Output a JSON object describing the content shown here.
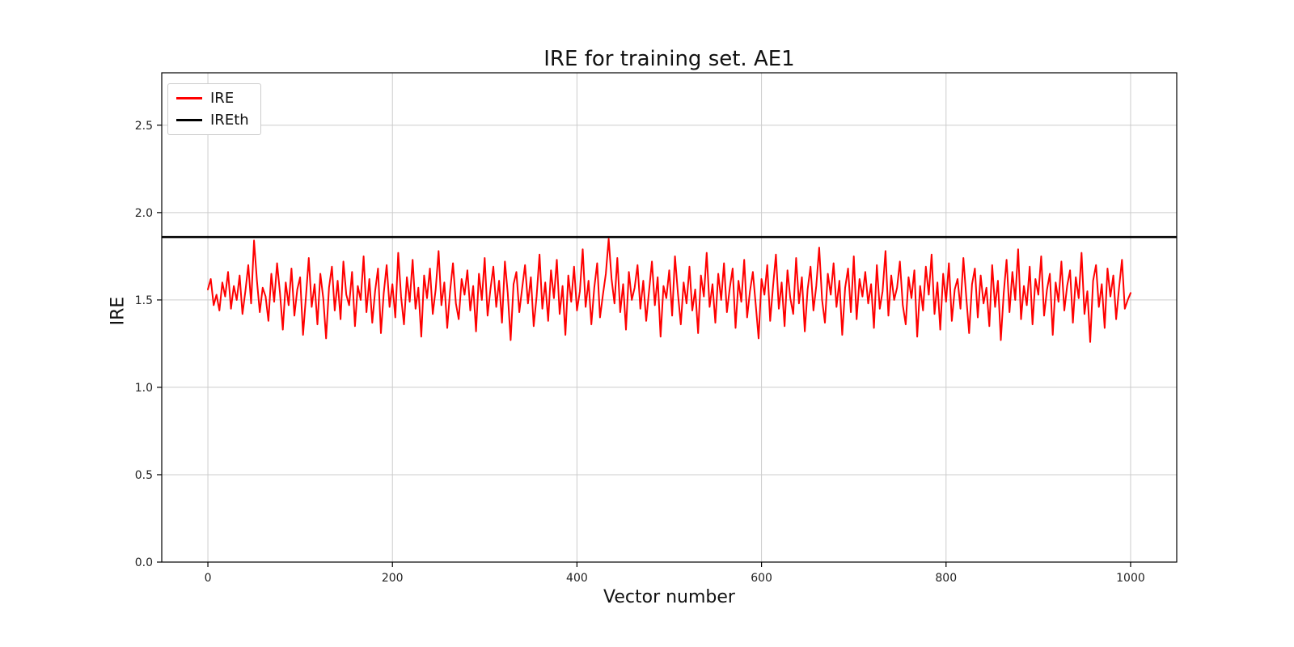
{
  "chart_data": {
    "type": "line",
    "title": "IRE for training set. AE1",
    "xlabel": "Vector number",
    "ylabel": "IRE",
    "xlim": [
      -50,
      1050
    ],
    "ylim": [
      0,
      2.8
    ],
    "xticks": [
      0,
      200,
      400,
      600,
      800,
      1000
    ],
    "yticks": [
      0.0,
      0.5,
      1.0,
      1.5,
      2.0,
      2.5
    ],
    "grid": true,
    "legend_position": "upper left",
    "legend": [
      {
        "label": "IRE",
        "color": "#ff0000"
      },
      {
        "label": "IREth",
        "color": "#000000"
      }
    ],
    "threshold": {
      "name": "IREth",
      "value": 1.86,
      "color": "#000000"
    },
    "series": [
      {
        "name": "IRE",
        "color": "#ff0000",
        "x_start": 0,
        "x_end": 1000,
        "values": [
          1.56,
          1.62,
          1.47,
          1.53,
          1.44,
          1.6,
          1.52,
          1.66,
          1.45,
          1.58,
          1.5,
          1.64,
          1.42,
          1.55,
          1.7,
          1.48,
          1.84,
          1.61,
          1.43,
          1.57,
          1.52,
          1.38,
          1.65,
          1.49,
          1.71,
          1.54,
          1.33,
          1.6,
          1.47,
          1.68,
          1.41,
          1.56,
          1.63,
          1.3,
          1.52,
          1.74,
          1.46,
          1.59,
          1.36,
          1.65,
          1.51,
          1.28,
          1.57,
          1.69,
          1.44,
          1.61,
          1.39,
          1.72,
          1.53,
          1.47,
          1.66,
          1.35,
          1.58,
          1.5,
          1.75,
          1.43,
          1.62,
          1.37,
          1.55,
          1.68,
          1.31,
          1.54,
          1.7,
          1.46,
          1.59,
          1.4,
          1.77,
          1.52,
          1.36,
          1.63,
          1.49,
          1.73,
          1.45,
          1.57,
          1.29,
          1.64,
          1.51,
          1.68,
          1.42,
          1.56,
          1.78,
          1.47,
          1.6,
          1.34,
          1.55,
          1.71,
          1.48,
          1.39,
          1.62,
          1.53,
          1.67,
          1.44,
          1.58,
          1.32,
          1.65,
          1.5,
          1.74,
          1.41,
          1.56,
          1.69,
          1.46,
          1.61,
          1.37,
          1.72,
          1.54,
          1.27,
          1.59,
          1.66,
          1.43,
          1.57,
          1.7,
          1.48,
          1.63,
          1.35,
          1.52,
          1.76,
          1.45,
          1.6,
          1.38,
          1.67,
          1.51,
          1.73,
          1.42,
          1.58,
          1.3,
          1.64,
          1.49,
          1.69,
          1.44,
          1.55,
          1.79,
          1.46,
          1.61,
          1.36,
          1.57,
          1.71,
          1.4,
          1.53,
          1.65,
          1.85,
          1.62,
          1.48,
          1.74,
          1.43,
          1.59,
          1.33,
          1.66,
          1.5,
          1.57,
          1.7,
          1.45,
          1.61,
          1.38,
          1.55,
          1.72,
          1.47,
          1.63,
          1.29,
          1.58,
          1.51,
          1.67,
          1.41,
          1.75,
          1.54,
          1.36,
          1.6,
          1.48,
          1.69,
          1.44,
          1.56,
          1.31,
          1.64,
          1.52,
          1.77,
          1.46,
          1.59,
          1.37,
          1.65,
          1.5,
          1.71,
          1.43,
          1.57,
          1.68,
          1.34,
          1.61,
          1.49,
          1.73,
          1.4,
          1.55,
          1.66,
          1.47,
          1.28,
          1.62,
          1.53,
          1.7,
          1.38,
          1.58,
          1.76,
          1.45,
          1.6,
          1.35,
          1.67,
          1.51,
          1.42,
          1.74,
          1.48,
          1.63,
          1.32,
          1.56,
          1.69,
          1.44,
          1.58,
          1.8,
          1.5,
          1.37,
          1.65,
          1.53,
          1.71,
          1.46,
          1.61,
          1.3,
          1.57,
          1.68,
          1.43,
          1.75,
          1.39,
          1.62,
          1.52,
          1.66,
          1.48,
          1.59,
          1.34,
          1.7,
          1.45,
          1.55,
          1.78,
          1.41,
          1.64,
          1.5,
          1.57,
          1.72,
          1.47,
          1.36,
          1.63,
          1.51,
          1.67,
          1.29,
          1.58,
          1.44,
          1.69,
          1.53,
          1.76,
          1.42,
          1.6,
          1.33,
          1.65,
          1.49,
          1.71,
          1.38,
          1.56,
          1.62,
          1.45,
          1.74,
          1.52,
          1.31,
          1.59,
          1.68,
          1.4,
          1.64,
          1.48,
          1.57,
          1.35,
          1.7,
          1.46,
          1.61,
          1.27,
          1.54,
          1.73,
          1.43,
          1.66,
          1.5,
          1.79,
          1.39,
          1.58,
          1.47,
          1.69,
          1.36,
          1.62,
          1.53,
          1.75,
          1.41,
          1.56,
          1.65,
          1.3,
          1.6,
          1.49,
          1.72,
          1.44,
          1.58,
          1.67,
          1.37,
          1.63,
          1.51,
          1.77,
          1.42,
          1.55,
          1.26,
          1.61,
          1.7,
          1.46,
          1.59,
          1.34,
          1.68,
          1.52,
          1.64,
          1.39,
          1.57,
          1.73,
          1.45,
          1.5,
          1.54
        ]
      }
    ]
  }
}
